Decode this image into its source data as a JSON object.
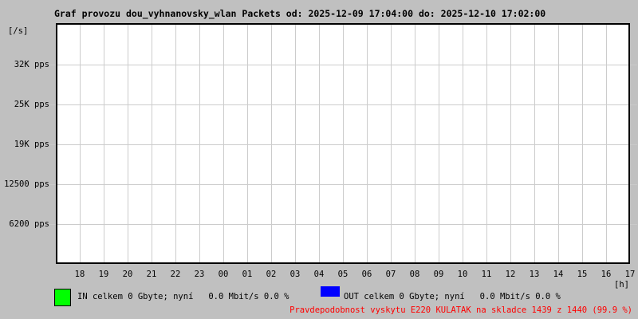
{
  "title": "Graf provozu dou_vyhnanovsky_wlan Packets od: 2025-12-09 17:04:00 do: 2025-12-10 17:02:00",
  "chart_data": {
    "type": "line",
    "title": "Graf provozu dou_vyhnanovsky_wlan Packets",
    "period_from": "2025-12-09 17:04:00",
    "period_to": "2025-12-10 17:02:00",
    "x": [
      "18",
      "19",
      "20",
      "21",
      "22",
      "23",
      "00",
      "01",
      "02",
      "03",
      "04",
      "05",
      "06",
      "07",
      "08",
      "09",
      "10",
      "11",
      "12",
      "13",
      "14",
      "15",
      "16",
      "17"
    ],
    "xlabel": "[h]",
    "ylabel": "[/s]",
    "y_ticks": [
      {
        "label": "32K pps",
        "value": 32000
      },
      {
        "label": "25K pps",
        "value": 25000
      },
      {
        "label": "19K pps",
        "value": 19000
      },
      {
        "label": "12500 pps",
        "value": 12500
      },
      {
        "label": "6200 pps",
        "value": 6200
      }
    ],
    "ylim": [
      0,
      37500
    ],
    "grid": true,
    "legend_position": "bottom",
    "series": [
      {
        "name": "IN",
        "color": "#00ff00",
        "values": [
          0,
          0,
          0,
          0,
          0,
          0,
          0,
          0,
          0,
          0,
          0,
          0,
          0,
          0,
          0,
          0,
          0,
          0,
          0,
          0,
          0,
          0,
          0,
          0
        ]
      },
      {
        "name": "OUT",
        "color": "#0000ff",
        "values": [
          0,
          0,
          0,
          0,
          0,
          0,
          0,
          0,
          0,
          0,
          0,
          0,
          0,
          0,
          0,
          0,
          0,
          0,
          0,
          0,
          0,
          0,
          0,
          0
        ]
      }
    ]
  },
  "legend": {
    "in": {
      "color": "#00ff00",
      "label": "IN celkem 0 Gbyte; nyní   0.0 Mbit/s 0.0 %"
    },
    "out": {
      "color": "#0000ff",
      "label": "OUT celkem 0 Gbyte; nyní   0.0 Mbit/s 0.0 %"
    }
  },
  "footer": {
    "text": "Pravdepodobnost vyskytu E220 KULATAK na skladce 1439 z 1440 (99.9 %)",
    "color": "#ff0000"
  },
  "colors": {
    "background": "#c0c0c0",
    "plot_background": "#ffffff",
    "grid": "#cccccc",
    "border": "#000000"
  }
}
